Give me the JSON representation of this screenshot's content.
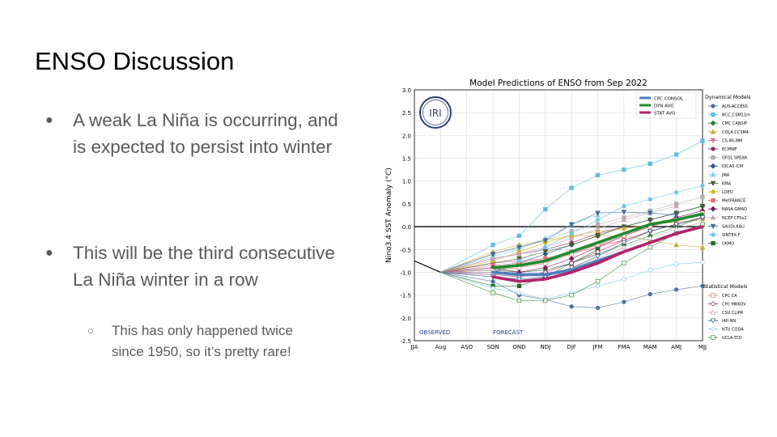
{
  "slide": {
    "title": "ENSO Discussion",
    "bullets": [
      "A weak La Niña is occurring, and is expected to persist into winter",
      "This will be the third consecutive La Niña winter in a row"
    ],
    "sub_bullets": [
      "This has only happened twice since 1950, so it’s pretty rare!"
    ],
    "bullet_glyph": "●",
    "sub_bullet_glyph": "○"
  },
  "chart_data": {
    "type": "line",
    "title": "Model Predictions of ENSO from Sep 2022",
    "ylabel": "Nino3.4 SST Anomaly (°C)",
    "xlabel": "",
    "x": [
      "JJA",
      "Aug",
      "ASO",
      "SON",
      "OND",
      "NDJ",
      "DJF",
      "JFM",
      "FMA",
      "MAM",
      "AMJ",
      "MJJ"
    ],
    "ylim": [
      -2.5,
      3.0
    ],
    "yticks": [
      "3.0",
      "2.5",
      "2.0",
      "1.5",
      "1.0",
      "0.5",
      "0.0",
      "-0.5",
      "-1.0",
      "-1.5",
      "-2.0",
      "-2.5"
    ],
    "grid": true,
    "logo_text": "IRI",
    "observed_label": "OBSERVED",
    "forecast_label": "FORECAST",
    "observed": [
      -0.75,
      -1.0
    ],
    "averages": [
      {
        "name": "CPC CONSOL",
        "color": "#4f7dc0",
        "values": [
          -1.0,
          -1.05,
          -1.05,
          -0.95,
          -0.75,
          -0.55,
          -0.35,
          -0.15,
          0.0
        ]
      },
      {
        "name": "DYN AVG",
        "color": "#1f8a2e",
        "values": [
          -0.9,
          -0.85,
          -0.75,
          -0.55,
          -0.35,
          -0.15,
          0.05,
          0.15,
          0.28
        ]
      },
      {
        "name": "STAT AVG",
        "color": "#b3246b",
        "values": [
          -1.1,
          -1.2,
          -1.15,
          -1.0,
          -0.8,
          -0.55,
          -0.35,
          -0.15,
          0.0
        ]
      }
    ],
    "dynamical_title": "Dynamical Models",
    "dynamical": [
      {
        "name": "AUS-ACCESS",
        "color": "#4a6fa5",
        "marker": "circle",
        "values": [
          -1.2,
          -1.5,
          -1.6,
          -1.75,
          -1.78,
          -1.65,
          -1.48,
          -1.38,
          -1.3
        ]
      },
      {
        "name": "BCC_CSM11m",
        "color": "#5bbde4",
        "marker": "square",
        "values": [
          -0.4,
          -0.2,
          0.38,
          0.85,
          1.13,
          1.25,
          1.38,
          1.58,
          1.88
        ]
      },
      {
        "name": "CMC CANSIP",
        "color": "#2e7d32",
        "marker": "diamond",
        "values": [
          -0.95,
          -1.0,
          -0.95,
          -0.8,
          -0.6,
          -0.4,
          -0.2,
          0.0,
          0.2
        ]
      },
      {
        "name": "COLA CCSM4",
        "color": "#c9b037",
        "marker": "triangle",
        "values": [
          -0.55,
          -0.4,
          -0.3,
          -0.2,
          -0.2,
          -0.2,
          -0.3,
          -0.4,
          -0.45
        ]
      },
      {
        "name": "CS-IRI-MM",
        "color": "#e06c9f",
        "marker": "triangle-down",
        "values": [
          -0.8,
          -0.75,
          -0.7,
          -0.6,
          -0.45,
          -0.3,
          -0.1,
          0.05,
          0.2
        ]
      },
      {
        "name": "ECMWF",
        "color": "#8e2a6b",
        "marker": "hexagon",
        "values": [
          -0.7,
          -0.6,
          -0.5,
          -0.35,
          -0.15,
          0.0
        ]
      },
      {
        "name": "GFDL SPEAR",
        "color": "#b0b0b0",
        "marker": "square",
        "values": [
          -0.6,
          -0.45,
          -0.3,
          -0.1,
          0.05,
          0.2,
          0.35,
          0.5,
          0.65
        ]
      },
      {
        "name": "IOCAS ICM",
        "color": "#2b5c8a",
        "marker": "diamond",
        "values": [
          -1.0,
          -0.8,
          -0.6,
          -0.4,
          -0.2,
          0.0,
          0.15,
          0.3,
          0.45
        ]
      },
      {
        "name": "JMA",
        "color": "#7fcdea",
        "marker": "triangle",
        "values": [
          -0.65,
          -0.5,
          -0.25,
          0.05,
          0.25
        ]
      },
      {
        "name": "KMA",
        "color": "#445a2b",
        "marker": "triangle-down",
        "values": [
          -0.8,
          -0.7,
          -0.55,
          -0.4,
          -0.2,
          0.0,
          0.15,
          0.3,
          0.45
        ]
      },
      {
        "name": "LDEO",
        "color": "#d4b21f",
        "marker": "circle",
        "values": [
          -0.75,
          -0.55,
          -0.35,
          -0.2,
          -0.1,
          -0.05,
          0.05,
          0.1,
          0.15
        ]
      },
      {
        "name": "MetFRANCE",
        "color": "#e57373",
        "marker": "square",
        "values": [
          -0.85,
          -0.8,
          -0.7,
          -0.55,
          -0.4,
          -0.3
        ]
      },
      {
        "name": "NASA GMAO",
        "color": "#7b1f5a",
        "marker": "diamond",
        "values": [
          -0.9,
          -1.0,
          -0.9,
          -0.7,
          -0.45,
          -0.2,
          0.0,
          0.2,
          0.35
        ]
      },
      {
        "name": "NCEP CFSv2",
        "color": "#c6a5b5",
        "marker": "triangle",
        "values": [
          -0.7,
          -0.6,
          -0.45,
          -0.25,
          -0.05,
          0.15,
          0.3,
          0.45
        ]
      },
      {
        "name": "SAUDI-KAU",
        "color": "#3e6d9c",
        "marker": "triangle-down",
        "values": [
          -0.6,
          -0.45,
          -0.3,
          0.05,
          0.3,
          0.32,
          0.3,
          0.25
        ]
      },
      {
        "name": "SINTEX-F",
        "color": "#6cc6e8",
        "marker": "circle",
        "values": [
          -0.95,
          -0.75,
          -0.45,
          -0.15,
          0.15,
          0.45,
          0.6,
          0.75,
          0.9
        ]
      },
      {
        "name": "UKMO",
        "color": "#1e6b2a",
        "marker": "square",
        "values": [
          -1.3,
          -1.3,
          -1.1,
          -0.8,
          -0.5
        ]
      }
    ],
    "statistical_title": "Statistical Models",
    "statistical": [
      {
        "name": "CPC CA",
        "color": "#e57373",
        "marker": "square-open",
        "values": [
          -0.95,
          -0.9,
          -0.8,
          -0.6,
          -0.4,
          -0.2,
          0.0,
          0.15,
          0.3
        ]
      },
      {
        "name": "CPC MRKOV",
        "color": "#8e2a6b",
        "marker": "diamond-open",
        "values": [
          -1.05,
          -1.1,
          -1.0,
          -0.8,
          -0.55,
          -0.3,
          -0.1,
          0.05,
          0.2
        ]
      },
      {
        "name": "CSU CLIPR",
        "color": "#c4a8b5",
        "marker": "triangle-open",
        "values": [
          -1.0,
          -1.1,
          -1.05,
          -0.9,
          -0.7,
          -0.45,
          -0.25,
          -0.05,
          0.1
        ]
      },
      {
        "name": "IAP-NN",
        "color": "#2b5c8a",
        "marker": "triangle-down-open",
        "values": [
          -1.1,
          -1.15,
          -1.1,
          -0.9,
          -0.65,
          -0.35,
          -0.1,
          0.05,
          0.2
        ]
      },
      {
        "name": "NTU CODA",
        "color": "#7fcdea",
        "marker": "circle-open",
        "values": [
          -1.35,
          -1.45,
          -1.6,
          -1.45,
          -1.3,
          -1.15,
          -0.95,
          -0.82,
          -0.78
        ]
      },
      {
        "name": "UCLA-TCD",
        "color": "#3a8a3a",
        "marker": "square-open",
        "values": [
          -1.45,
          -1.62,
          -1.62,
          -1.5,
          -1.2,
          -0.8,
          -0.45,
          -0.15,
          0.05
        ]
      }
    ]
  }
}
